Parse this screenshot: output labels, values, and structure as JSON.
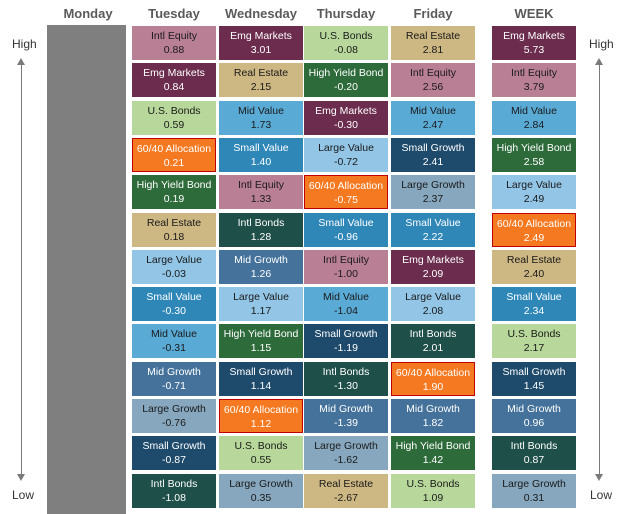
{
  "headers": [
    "Monday",
    "Tuesday",
    "Wednesday",
    "Thursday",
    "Friday",
    "WEEK"
  ],
  "side_labels": {
    "high": "High",
    "low": "Low"
  },
  "colors": {
    "Intl Equity": "#b97f95",
    "Emg Markets": "#6b2c4d",
    "U.S. Bonds": "#b7d89a",
    "60/40 Allocation": "#f47920",
    "High Yield Bond": "#2e6b3a",
    "Real Estate": "#cdb783",
    "Large Value": "#92c5e6",
    "Small Value": "#2f87b8",
    "Mid Value": "#5aaad6",
    "Mid Growth": "#44729a",
    "Large Growth": "#86a7be",
    "Small Growth": "#1e4a6b",
    "Intl Bonds": "#1f4f49"
  },
  "chart_data": {
    "type": "table",
    "columns": [
      {
        "day": "Monday",
        "cells": []
      },
      {
        "day": "Tuesday",
        "cells": [
          {
            "name": "Intl Equity",
            "value": "0.88"
          },
          {
            "name": "Emg Markets",
            "value": "0.84"
          },
          {
            "name": "U.S. Bonds",
            "value": "0.59"
          },
          {
            "name": "60/40 Allocation",
            "value": "0.21"
          },
          {
            "name": "High Yield Bond",
            "value": "0.19"
          },
          {
            "name": "Real Estate",
            "value": "0.18"
          },
          {
            "name": "Large Value",
            "value": "-0.03"
          },
          {
            "name": "Small Value",
            "value": "-0.30"
          },
          {
            "name": "Mid Value",
            "value": "-0.31"
          },
          {
            "name": "Mid Growth",
            "value": "-0.71"
          },
          {
            "name": "Large Growth",
            "value": "-0.76"
          },
          {
            "name": "Small Growth",
            "value": "-0.87"
          },
          {
            "name": "Intl Bonds",
            "value": "-1.08"
          }
        ]
      },
      {
        "day": "Wednesday",
        "cells": [
          {
            "name": "Emg Markets",
            "value": "3.01"
          },
          {
            "name": "Real Estate",
            "value": "2.15"
          },
          {
            "name": "Mid Value",
            "value": "1.73"
          },
          {
            "name": "Small Value",
            "value": "1.40"
          },
          {
            "name": "Intl Equity",
            "value": "1.33"
          },
          {
            "name": "Intl Bonds",
            "value": "1.28"
          },
          {
            "name": "Mid Growth",
            "value": "1.26"
          },
          {
            "name": "Large Value",
            "value": "1.17"
          },
          {
            "name": "High Yield Bond",
            "value": "1.15"
          },
          {
            "name": "Small Growth",
            "value": "1.14"
          },
          {
            "name": "60/40 Allocation",
            "value": "1.12"
          },
          {
            "name": "U.S. Bonds",
            "value": "0.55"
          },
          {
            "name": "Large Growth",
            "value": "0.35"
          }
        ]
      },
      {
        "day": "Thursday",
        "cells": [
          {
            "name": "U.S. Bonds",
            "value": "-0.08"
          },
          {
            "name": "High Yield Bond",
            "value": "-0.20"
          },
          {
            "name": "Emg Markets",
            "value": "-0.30"
          },
          {
            "name": "Large Value",
            "value": "-0.72"
          },
          {
            "name": "60/40 Allocation",
            "value": "-0.75"
          },
          {
            "name": "Small Value",
            "value": "-0.96"
          },
          {
            "name": "Intl Equity",
            "value": "-1.00"
          },
          {
            "name": "Mid Value",
            "value": "-1.04"
          },
          {
            "name": "Small Growth",
            "value": "-1.19"
          },
          {
            "name": "Intl Bonds",
            "value": "-1.30"
          },
          {
            "name": "Mid Growth",
            "value": "-1.39"
          },
          {
            "name": "Large Growth",
            "value": "-1.62"
          },
          {
            "name": "Real Estate",
            "value": "-2.67"
          }
        ]
      },
      {
        "day": "Friday",
        "cells": [
          {
            "name": "Real Estate",
            "value": "2.81"
          },
          {
            "name": "Intl Equity",
            "value": "2.56"
          },
          {
            "name": "Mid Value",
            "value": "2.47"
          },
          {
            "name": "Small Growth",
            "value": "2.41"
          },
          {
            "name": "Large Growth",
            "value": "2.37"
          },
          {
            "name": "Small Value",
            "value": "2.22"
          },
          {
            "name": "Emg Markets",
            "value": "2.09"
          },
          {
            "name": "Large Value",
            "value": "2.08"
          },
          {
            "name": "Intl Bonds",
            "value": "2.01"
          },
          {
            "name": "60/40 Allocation",
            "value": "1.90"
          },
          {
            "name": "Mid Growth",
            "value": "1.82"
          },
          {
            "name": "High Yield Bond",
            "value": "1.42"
          },
          {
            "name": "U.S. Bonds",
            "value": "1.09"
          }
        ]
      },
      {
        "day": "WEEK",
        "cells": [
          {
            "name": "Emg Markets",
            "value": "5.73"
          },
          {
            "name": "Intl Equity",
            "value": "3.79"
          },
          {
            "name": "Mid Value",
            "value": "2.84"
          },
          {
            "name": "High Yield Bond",
            "value": "2.58"
          },
          {
            "name": "Large Value",
            "value": "2.49"
          },
          {
            "name": "60/40 Allocation",
            "value": "2.49"
          },
          {
            "name": "Real Estate",
            "value": "2.40"
          },
          {
            "name": "Small Value",
            "value": "2.34"
          },
          {
            "name": "U.S. Bonds",
            "value": "2.17"
          },
          {
            "name": "Small Growth",
            "value": "1.45"
          },
          {
            "name": "Mid Growth",
            "value": "0.96"
          },
          {
            "name": "Intl Bonds",
            "value": "0.87"
          },
          {
            "name": "Large Growth",
            "value": "0.31"
          }
        ]
      }
    ]
  }
}
